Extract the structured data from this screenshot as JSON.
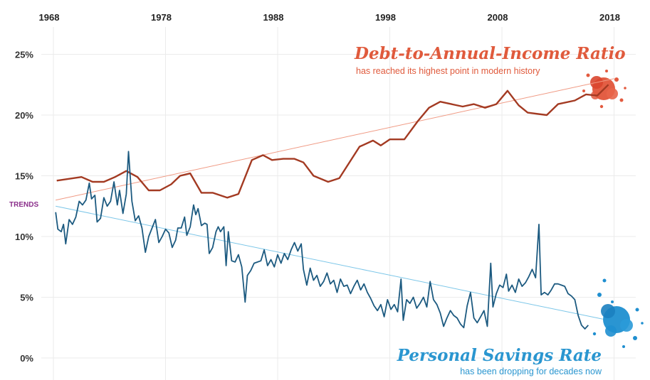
{
  "chart_data": {
    "type": "line",
    "x_ticks": [
      "1968",
      "1978",
      "1988",
      "1998",
      "2008",
      "2018"
    ],
    "y_ticks": [
      "0%",
      "5%",
      "10%",
      "15%",
      "20%",
      "25%"
    ],
    "xlim": [
      1968,
      2019.5
    ],
    "ylim": [
      0,
      26
    ],
    "grid": true,
    "trends_label": "TRENDS",
    "series": [
      {
        "name": "Debt-to-Annual-Income Ratio",
        "color": "#a33a22",
        "values": [
          [
            1968.3,
            14.6
          ],
          [
            1970.5,
            14.9
          ],
          [
            1971.5,
            14.5
          ],
          [
            1972.5,
            14.5
          ],
          [
            1973.5,
            14.9
          ],
          [
            1974.5,
            15.4
          ],
          [
            1975.5,
            14.9
          ],
          [
            1976.5,
            13.8
          ],
          [
            1977.5,
            13.8
          ],
          [
            1978.5,
            14.3
          ],
          [
            1979.3,
            15.0
          ],
          [
            1980.2,
            15.2
          ],
          [
            1981.2,
            13.6
          ],
          [
            1982.2,
            13.6
          ],
          [
            1983.5,
            13.2
          ],
          [
            1984.5,
            13.5
          ],
          [
            1985.7,
            16.3
          ],
          [
            1986.7,
            16.7
          ],
          [
            1987.5,
            16.3
          ],
          [
            1988.5,
            16.4
          ],
          [
            1989.5,
            16.4
          ],
          [
            1990.3,
            16.1
          ],
          [
            1991.2,
            15.0
          ],
          [
            1992.5,
            14.5
          ],
          [
            1993.5,
            14.8
          ],
          [
            1995.3,
            17.4
          ],
          [
            1996.5,
            17.9
          ],
          [
            1997.2,
            17.5
          ],
          [
            1998.0,
            18.0
          ],
          [
            1999.3,
            18.0
          ],
          [
            2000.5,
            19.5
          ],
          [
            2001.5,
            20.6
          ],
          [
            2002.5,
            21.1
          ],
          [
            2003.5,
            20.9
          ],
          [
            2004.5,
            20.7
          ],
          [
            2005.5,
            20.9
          ],
          [
            2006.5,
            20.6
          ],
          [
            2007.5,
            20.9
          ],
          [
            2008.5,
            22.0
          ],
          [
            2009.5,
            20.8
          ],
          [
            2010.3,
            20.2
          ],
          [
            2012.0,
            20.0
          ],
          [
            2013.0,
            20.9
          ],
          [
            2014.5,
            21.2
          ],
          [
            2015.5,
            21.7
          ],
          [
            2016.5,
            21.6
          ],
          [
            2017.5,
            22.5
          ]
        ]
      },
      {
        "name": "Personal Savings Rate",
        "color": "#1c5a80",
        "values": [
          [
            1968.2,
            12.0
          ],
          [
            1968.4,
            10.6
          ],
          [
            1968.7,
            10.4
          ],
          [
            1968.9,
            11.0
          ],
          [
            1969.1,
            9.4
          ],
          [
            1969.4,
            11.4
          ],
          [
            1969.7,
            11.0
          ],
          [
            1970.0,
            11.6
          ],
          [
            1970.3,
            12.9
          ],
          [
            1970.6,
            12.6
          ],
          [
            1970.9,
            13.0
          ],
          [
            1971.2,
            14.4
          ],
          [
            1971.4,
            13.1
          ],
          [
            1971.7,
            13.4
          ],
          [
            1971.9,
            11.2
          ],
          [
            1972.2,
            11.5
          ],
          [
            1972.5,
            13.2
          ],
          [
            1972.8,
            12.5
          ],
          [
            1973.1,
            12.9
          ],
          [
            1973.4,
            14.5
          ],
          [
            1973.7,
            12.6
          ],
          [
            1973.9,
            13.8
          ],
          [
            1974.2,
            11.9
          ],
          [
            1974.5,
            13.5
          ],
          [
            1974.7,
            17.0
          ],
          [
            1975.0,
            12.9
          ],
          [
            1975.3,
            11.3
          ],
          [
            1975.6,
            11.7
          ],
          [
            1975.9,
            10.7
          ],
          [
            1976.2,
            8.7
          ],
          [
            1976.5,
            10.0
          ],
          [
            1976.8,
            10.7
          ],
          [
            1977.1,
            11.4
          ],
          [
            1977.4,
            9.5
          ],
          [
            1977.7,
            10.0
          ],
          [
            1978.0,
            10.6
          ],
          [
            1978.3,
            10.3
          ],
          [
            1978.6,
            9.1
          ],
          [
            1978.9,
            9.7
          ],
          [
            1979.1,
            10.7
          ],
          [
            1979.4,
            10.7
          ],
          [
            1979.7,
            11.6
          ],
          [
            1979.9,
            10.1
          ],
          [
            1980.2,
            10.8
          ],
          [
            1980.5,
            12.6
          ],
          [
            1980.7,
            11.8
          ],
          [
            1980.9,
            12.3
          ],
          [
            1981.2,
            10.9
          ],
          [
            1981.5,
            11.1
          ],
          [
            1981.7,
            11.0
          ],
          [
            1981.9,
            8.6
          ],
          [
            1982.2,
            9.1
          ],
          [
            1982.5,
            10.4
          ],
          [
            1982.7,
            10.8
          ],
          [
            1982.9,
            10.4
          ],
          [
            1983.2,
            10.8
          ],
          [
            1983.4,
            7.6
          ],
          [
            1983.6,
            10.4
          ],
          [
            1983.9,
            8.0
          ],
          [
            1984.2,
            7.9
          ],
          [
            1984.5,
            8.5
          ],
          [
            1984.8,
            7.5
          ],
          [
            1985.1,
            4.6
          ],
          [
            1985.3,
            6.8
          ],
          [
            1985.6,
            7.2
          ],
          [
            1985.9,
            7.8
          ],
          [
            1986.2,
            7.9
          ],
          [
            1986.5,
            8.0
          ],
          [
            1986.8,
            8.9
          ],
          [
            1987.1,
            7.6
          ],
          [
            1987.4,
            8.1
          ],
          [
            1987.7,
            7.5
          ],
          [
            1988.0,
            8.5
          ],
          [
            1988.3,
            7.8
          ],
          [
            1988.6,
            8.6
          ],
          [
            1988.9,
            8.1
          ],
          [
            1989.2,
            8.9
          ],
          [
            1989.5,
            9.5
          ],
          [
            1989.8,
            8.8
          ],
          [
            1990.1,
            9.4
          ],
          [
            1990.3,
            7.3
          ],
          [
            1990.6,
            6.0
          ],
          [
            1990.9,
            7.4
          ],
          [
            1991.2,
            6.4
          ],
          [
            1991.5,
            6.8
          ],
          [
            1991.8,
            5.9
          ],
          [
            1992.1,
            6.3
          ],
          [
            1992.4,
            7.0
          ],
          [
            1992.7,
            6.1
          ],
          [
            1993.0,
            6.4
          ],
          [
            1993.3,
            5.4
          ],
          [
            1993.6,
            6.5
          ],
          [
            1993.9,
            5.9
          ],
          [
            1994.2,
            6.0
          ],
          [
            1994.5,
            5.3
          ],
          [
            1994.8,
            5.9
          ],
          [
            1995.1,
            6.4
          ],
          [
            1995.4,
            5.6
          ],
          [
            1995.7,
            6.1
          ],
          [
            1996.0,
            5.4
          ],
          [
            1996.3,
            4.9
          ],
          [
            1996.6,
            4.3
          ],
          [
            1996.9,
            3.9
          ],
          [
            1997.2,
            4.4
          ],
          [
            1997.5,
            3.4
          ],
          [
            1997.8,
            4.8
          ],
          [
            1998.1,
            4.0
          ],
          [
            1998.4,
            4.4
          ],
          [
            1998.7,
            3.8
          ],
          [
            1999.0,
            6.5
          ],
          [
            1999.2,
            3.1
          ],
          [
            1999.5,
            4.8
          ],
          [
            1999.8,
            4.5
          ],
          [
            2000.1,
            5.0
          ],
          [
            2000.4,
            4.1
          ],
          [
            2000.7,
            4.5
          ],
          [
            2001.0,
            5.0
          ],
          [
            2001.3,
            4.2
          ],
          [
            2001.6,
            6.3
          ],
          [
            2001.9,
            4.8
          ],
          [
            2002.2,
            4.4
          ],
          [
            2002.5,
            3.7
          ],
          [
            2002.8,
            2.6
          ],
          [
            2003.1,
            3.3
          ],
          [
            2003.4,
            3.9
          ],
          [
            2003.7,
            3.5
          ],
          [
            2004.0,
            3.3
          ],
          [
            2004.3,
            2.8
          ],
          [
            2004.6,
            2.5
          ],
          [
            2004.9,
            4.3
          ],
          [
            2005.2,
            5.4
          ],
          [
            2005.5,
            3.3
          ],
          [
            2005.8,
            2.9
          ],
          [
            2006.1,
            3.4
          ],
          [
            2006.4,
            3.9
          ],
          [
            2006.7,
            2.6
          ],
          [
            2007.0,
            7.8
          ],
          [
            2007.2,
            4.2
          ],
          [
            2007.5,
            5.3
          ],
          [
            2007.8,
            6.0
          ],
          [
            2008.1,
            5.8
          ],
          [
            2008.4,
            6.9
          ],
          [
            2008.6,
            5.5
          ],
          [
            2008.9,
            6.0
          ],
          [
            2009.2,
            5.4
          ],
          [
            2009.5,
            6.5
          ],
          [
            2009.8,
            5.9
          ],
          [
            2010.1,
            6.2
          ],
          [
            2010.4,
            6.7
          ],
          [
            2010.7,
            7.3
          ],
          [
            2011.0,
            6.6
          ],
          [
            2011.3,
            11.0
          ],
          [
            2011.5,
            5.2
          ],
          [
            2011.8,
            5.4
          ],
          [
            2012.1,
            5.2
          ],
          [
            2012.4,
            5.6
          ],
          [
            2012.7,
            6.1
          ],
          [
            2013.0,
            6.1
          ],
          [
            2013.3,
            6.0
          ],
          [
            2013.6,
            5.9
          ],
          [
            2013.9,
            5.3
          ],
          [
            2014.2,
            5.1
          ],
          [
            2014.5,
            4.8
          ],
          [
            2014.8,
            3.5
          ],
          [
            2015.1,
            2.7
          ],
          [
            2015.4,
            2.4
          ],
          [
            2015.7,
            2.7
          ]
        ]
      }
    ],
    "trend_lines": [
      {
        "color": "#f09a84",
        "from": [
          1968.2,
          13.0
        ],
        "to": [
          2018.0,
          23.0
        ]
      },
      {
        "color": "#7cc6e8",
        "from": [
          1968.2,
          12.5
        ],
        "to": [
          2017.0,
          3.2
        ]
      }
    ],
    "annotations": [
      {
        "title": "Debt-to-Annual-Income Ratio",
        "subtitle": "has reached its highest point in modern history",
        "color": "#e05a3c"
      },
      {
        "title": "Personal Savings Rate",
        "subtitle": "has been dropping for decades now",
        "color": "#2a96d0"
      }
    ]
  }
}
